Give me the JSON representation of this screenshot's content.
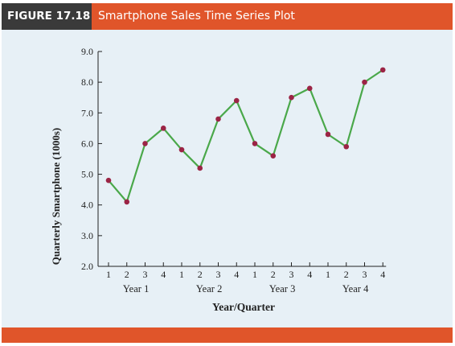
{
  "figure": {
    "label": "FIGURE 17.18",
    "title": "Smartphone Sales Time Series Plot"
  },
  "colors": {
    "header": "#e0552a",
    "label_box": "#3a3a3a",
    "panel": "#e7f0f6",
    "line": "#4aa84a",
    "marker": "#9b2445"
  },
  "chart_data": {
    "type": "line",
    "title": "Smartphone Sales Time Series Plot",
    "xlabel": "Year/Quarter",
    "ylabel": "Quarterly Smartphone (1000s)",
    "ylim": [
      2.0,
      9.0
    ],
    "yticks": [
      "2.0",
      "3.0",
      "4.0",
      "5.0",
      "6.0",
      "7.0",
      "8.0",
      "9.0"
    ],
    "categories": [
      "1",
      "2",
      "3",
      "4",
      "1",
      "2",
      "3",
      "4",
      "1",
      "2",
      "3",
      "4",
      "1",
      "2",
      "3",
      "4"
    ],
    "groups": [
      "Year 1",
      "Year 2",
      "Year 3",
      "Year 4"
    ],
    "series": [
      {
        "values": [
          4.8,
          4.1,
          6.0,
          6.5,
          5.8,
          5.2,
          6.8,
          7.4,
          6.0,
          5.6,
          7.5,
          7.8,
          6.3,
          5.9,
          8.0,
          8.4
        ]
      }
    ],
    "grid": false,
    "legend": "none"
  }
}
